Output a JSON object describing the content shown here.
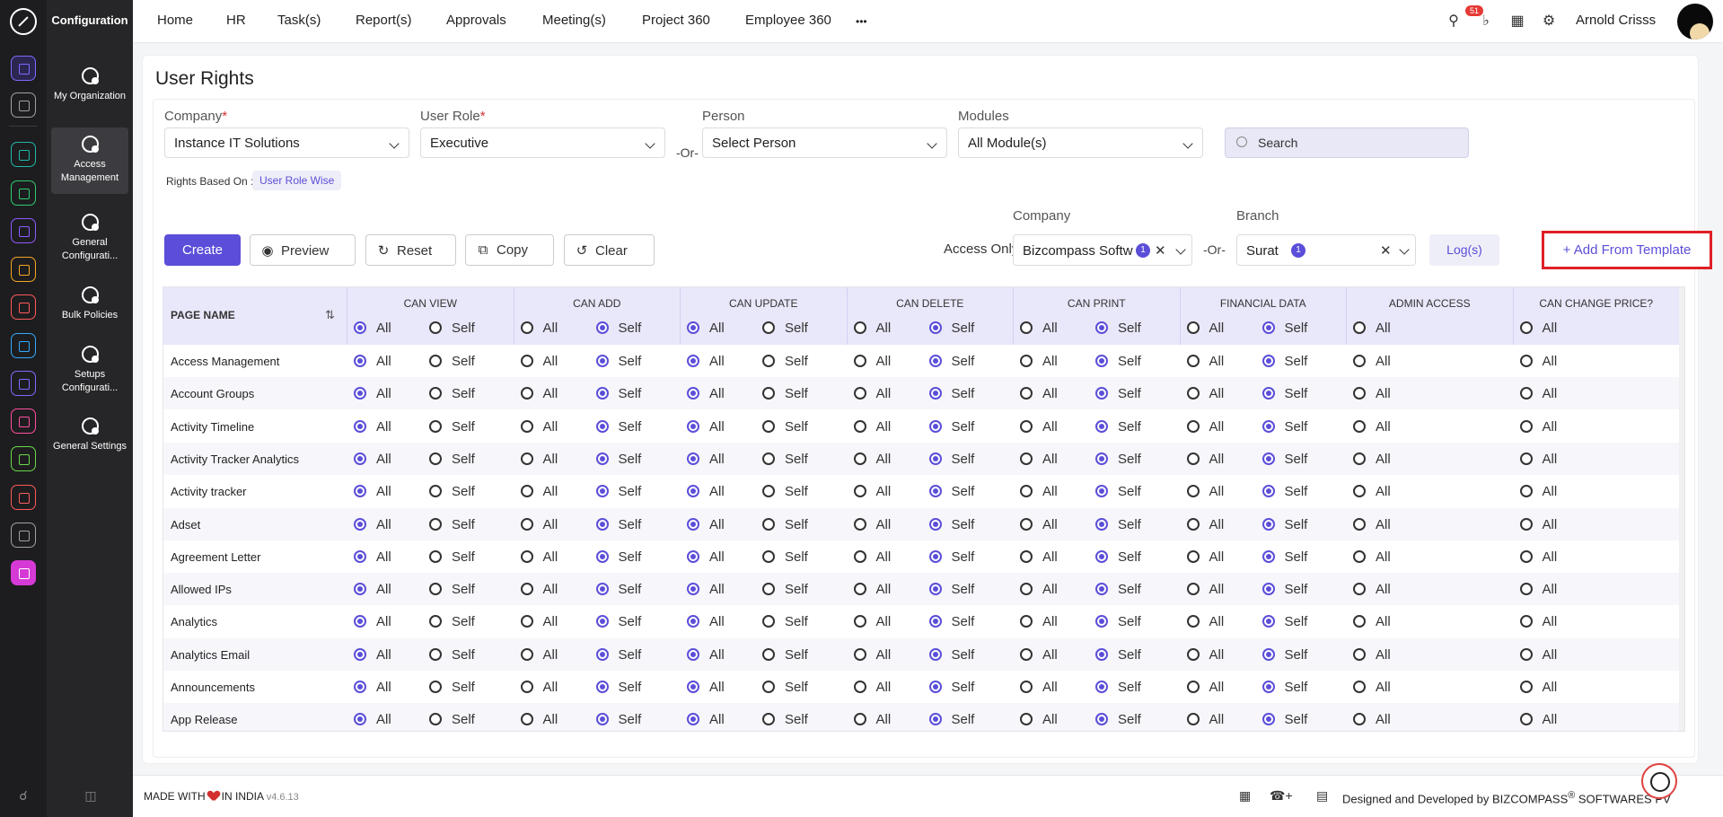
{
  "sidebar": {
    "title": "Configuration",
    "items": [
      {
        "label": "My Organization",
        "icon": "organization-gear-icon"
      },
      {
        "label": "Access Management",
        "icon": "gear-icon"
      },
      {
        "label": "General Configurati...",
        "icon": "gear-icon"
      },
      {
        "label": "Bulk Policies",
        "icon": "document-gear-icon"
      },
      {
        "label": "Setups Configurati...",
        "icon": "gear-icon"
      },
      {
        "label": "General Settings",
        "icon": "organization-gear-icon"
      }
    ]
  },
  "rail": {
    "colors": [
      "#7c6cff",
      "#a0a0a8",
      "#22b8a8",
      "#2ecc71",
      "#8e5bff",
      "#f5a623",
      "#ff5a5a",
      "#33a8ff",
      "#7c6cff",
      "#ff4fa0",
      "#6ad84a",
      "#ff5a5a",
      "#a0a0a8",
      "#d63ad6"
    ]
  },
  "topnav": {
    "items": [
      "Home",
      "HR",
      "Task(s)",
      "Report(s)",
      "Approvals",
      "Meeting(s)",
      "Project 360",
      "Employee 360"
    ],
    "more": "•••",
    "notification_count": "51",
    "user_name": "Arnold Crisss"
  },
  "page": {
    "title": "User Rights"
  },
  "filters": {
    "company_label": "Company",
    "company_value": "Instance IT Solutions",
    "user_role_label": "User Role",
    "user_role_value": "Executive",
    "or": "-Or-",
    "person_label": "Person",
    "person_value": "Select Person",
    "modules_label": "Modules",
    "modules_value": "All Module(s)",
    "search_placeholder": "Search",
    "required_mark": "*"
  },
  "rights_based_on": {
    "label": "Rights Based On :",
    "value": "User Role Wise"
  },
  "actions": {
    "create": "Create",
    "preview": "Preview",
    "reset": "Reset",
    "copy": "Copy",
    "clear": "Clear",
    "access_only": "Access Only",
    "company_label": "Company",
    "company_value": "Bizcompass Softw",
    "company_count": "1",
    "or": "-Or-",
    "branch_label": "Branch",
    "branch_value": "Surat",
    "branch_count": "1",
    "log": "Log(s)",
    "add_template": "Add From Template"
  },
  "table": {
    "page_name_header": "PAGE NAME",
    "opt_all": "All",
    "opt_self": "Self",
    "groups": [
      {
        "title": "CAN VIEW",
        "self": true,
        "header_sel": "all",
        "row_sel": "all"
      },
      {
        "title": "CAN ADD",
        "self": true,
        "header_sel": "self",
        "row_sel": "self"
      },
      {
        "title": "CAN UPDATE",
        "self": true,
        "header_sel": "all",
        "row_sel": "all"
      },
      {
        "title": "CAN DELETE",
        "self": true,
        "header_sel": "self",
        "row_sel": "self"
      },
      {
        "title": "CAN PRINT",
        "self": true,
        "header_sel": "self",
        "row_sel": "self"
      },
      {
        "title": "FINANCIAL DATA",
        "self": true,
        "header_sel": "self",
        "row_sel": "self"
      },
      {
        "title": "ADMIN ACCESS",
        "self": false,
        "header_sel": "none",
        "row_sel": "none"
      },
      {
        "title": "CAN CHANGE PRICE?",
        "self": false,
        "header_sel": "none",
        "row_sel": "none"
      }
    ],
    "rows": [
      "Access Management",
      "Account Groups",
      "Activity Timeline",
      "Activity Tracker Analytics",
      "Activity tracker",
      "Adset",
      "Agreement Letter",
      "Allowed IPs",
      "Analytics",
      "Analytics Email",
      "Announcements",
      "App Release"
    ]
  },
  "footer": {
    "made_with": "MADE WITH",
    "in_india": "IN INDIA",
    "version": "v4.6.13",
    "designed_by": "Designed and Developed by",
    "company": "BIZCOMPASS",
    "reg": "®",
    "company_rest": "SOFTWARES PV"
  }
}
